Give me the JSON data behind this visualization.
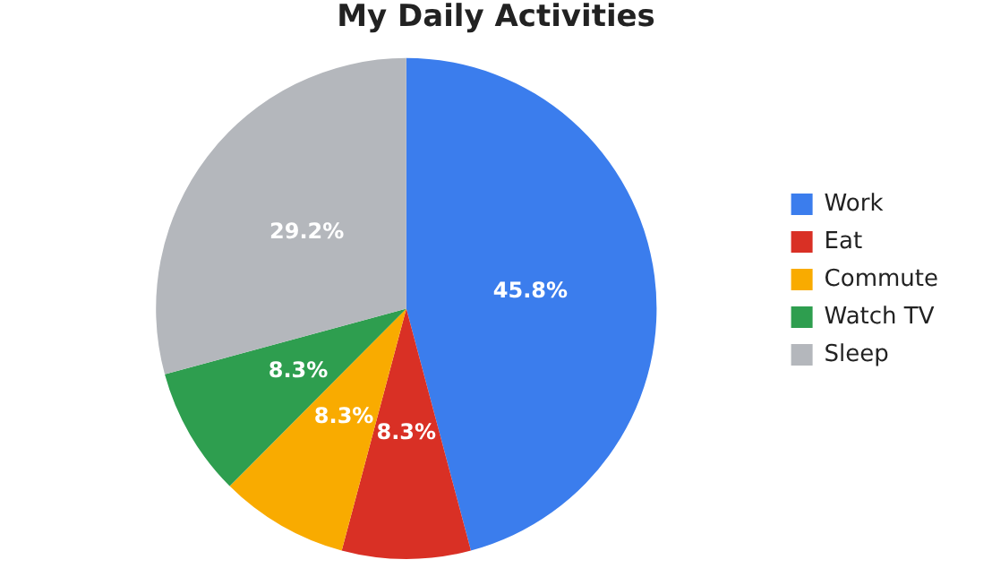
{
  "chart_data": {
    "type": "pie",
    "title": "My Daily Activities",
    "categories": [
      "Work",
      "Eat",
      "Commute",
      "Watch TV",
      "Sleep"
    ],
    "values": [
      45.8,
      8.3,
      8.3,
      8.3,
      29.2
    ],
    "value_labels": [
      "45.8%",
      "8.3%",
      "8.3%",
      "8.3%",
      "29.2%"
    ],
    "colors": [
      "#3b7ded",
      "#d93025",
      "#f9ab00",
      "#2e9e4f",
      "#b4b7bc"
    ],
    "legend": "right"
  }
}
